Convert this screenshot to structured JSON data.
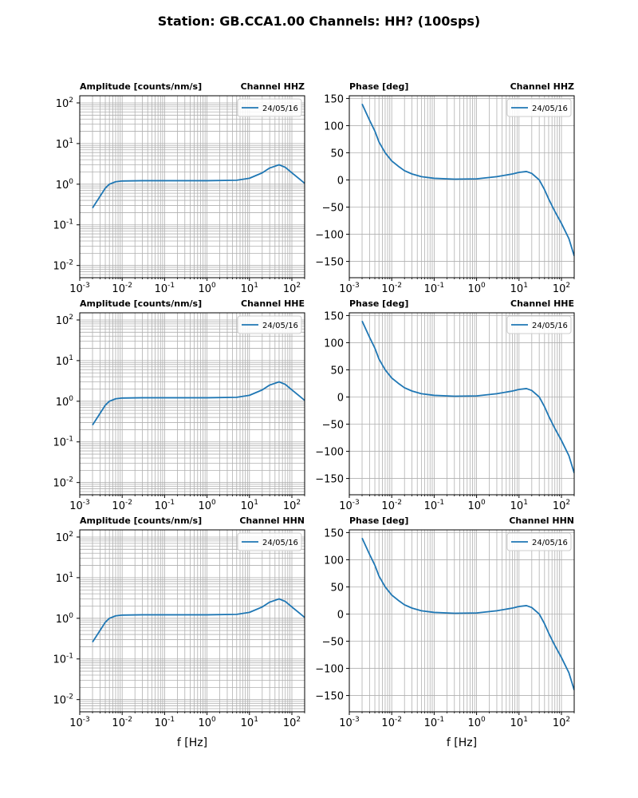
{
  "figure": {
    "title": "Station: GB.CCA1.00 Channels: HH? (100sps)"
  },
  "chart_data": [
    {
      "type": "line",
      "kind": "amplitude",
      "title_left": "Amplitude [counts/nm/s]",
      "title_right": "Channel HHZ",
      "xscale": "log",
      "yscale": "log",
      "xlim": [
        0.001,
        200
      ],
      "ylim": [
        0.005,
        150
      ],
      "xticks": [
        0.001,
        0.01,
        0.1,
        1,
        10,
        100
      ],
      "yticks": [
        0.01,
        0.1,
        1,
        10,
        100
      ],
      "xlabel": "",
      "grid": true,
      "legend_position": "top-right",
      "series": [
        {
          "name": "24/05/16",
          "color": "#1f77b4",
          "x": [
            0.002,
            0.003,
            0.004,
            0.005,
            0.007,
            0.01,
            0.03,
            0.1,
            1,
            5,
            10,
            20,
            30,
            50,
            70,
            100,
            150,
            200
          ],
          "y": [
            0.26,
            0.5,
            0.8,
            1.0,
            1.15,
            1.2,
            1.22,
            1.22,
            1.22,
            1.25,
            1.4,
            1.9,
            2.5,
            3.0,
            2.6,
            1.9,
            1.35,
            1.05
          ]
        }
      ]
    },
    {
      "type": "line",
      "kind": "phase",
      "title_left": "Phase [deg]",
      "title_right": "Channel HHZ",
      "xscale": "log",
      "yscale": "linear",
      "xlim": [
        0.001,
        200
      ],
      "ylim": [
        -180,
        155
      ],
      "xticks": [
        0.001,
        0.01,
        0.1,
        1,
        10,
        100
      ],
      "yticks": [
        -150,
        -100,
        -50,
        0,
        50,
        100,
        150
      ],
      "xlabel": "",
      "grid": true,
      "legend_position": "top-right",
      "series": [
        {
          "name": "24/05/16",
          "color": "#1f77b4",
          "x": [
            0.002,
            0.003,
            0.004,
            0.005,
            0.007,
            0.01,
            0.015,
            0.02,
            0.03,
            0.05,
            0.1,
            0.3,
            1,
            3,
            7,
            10,
            15,
            20,
            30,
            40,
            50,
            70,
            100,
            150,
            200
          ],
          "y": [
            140,
            110,
            90,
            70,
            50,
            35,
            24,
            17,
            11,
            6,
            3,
            1.5,
            2,
            6,
            11,
            14,
            15.5,
            12,
            0,
            -18,
            -35,
            -58,
            -80,
            -108,
            -140
          ]
        }
      ]
    },
    {
      "type": "line",
      "kind": "amplitude",
      "title_left": "Amplitude [counts/nm/s]",
      "title_right": "Channel HHE",
      "xscale": "log",
      "yscale": "log",
      "xlim": [
        0.001,
        200
      ],
      "ylim": [
        0.005,
        150
      ],
      "xticks": [
        0.001,
        0.01,
        0.1,
        1,
        10,
        100
      ],
      "yticks": [
        0.01,
        0.1,
        1,
        10,
        100
      ],
      "xlabel": "",
      "grid": true,
      "legend_position": "top-right",
      "series": [
        {
          "name": "24/05/16",
          "color": "#1f77b4",
          "x": [
            0.002,
            0.003,
            0.004,
            0.005,
            0.007,
            0.01,
            0.03,
            0.1,
            1,
            5,
            10,
            20,
            30,
            50,
            70,
            100,
            150,
            200
          ],
          "y": [
            0.26,
            0.5,
            0.8,
            1.0,
            1.15,
            1.2,
            1.22,
            1.22,
            1.22,
            1.25,
            1.4,
            1.9,
            2.5,
            3.0,
            2.6,
            1.9,
            1.35,
            1.05
          ]
        }
      ]
    },
    {
      "type": "line",
      "kind": "phase",
      "title_left": "Phase [deg]",
      "title_right": "Channel HHE",
      "xscale": "log",
      "yscale": "linear",
      "xlim": [
        0.001,
        200
      ],
      "ylim": [
        -180,
        155
      ],
      "xticks": [
        0.001,
        0.01,
        0.1,
        1,
        10,
        100
      ],
      "yticks": [
        -150,
        -100,
        -50,
        0,
        50,
        100,
        150
      ],
      "xlabel": "",
      "grid": true,
      "legend_position": "top-right",
      "series": [
        {
          "name": "24/05/16",
          "color": "#1f77b4",
          "x": [
            0.002,
            0.003,
            0.004,
            0.005,
            0.007,
            0.01,
            0.015,
            0.02,
            0.03,
            0.05,
            0.1,
            0.3,
            1,
            3,
            7,
            10,
            15,
            20,
            30,
            40,
            50,
            70,
            100,
            150,
            200
          ],
          "y": [
            140,
            110,
            90,
            70,
            50,
            35,
            24,
            17,
            11,
            6,
            3,
            1.5,
            2,
            6,
            11,
            14,
            15.5,
            12,
            0,
            -18,
            -35,
            -58,
            -80,
            -108,
            -140
          ]
        }
      ]
    },
    {
      "type": "line",
      "kind": "amplitude",
      "title_left": "Amplitude [counts/nm/s]",
      "title_right": "Channel HHN",
      "xscale": "log",
      "yscale": "log",
      "xlim": [
        0.001,
        200
      ],
      "ylim": [
        0.005,
        150
      ],
      "xticks": [
        0.001,
        0.01,
        0.1,
        1,
        10,
        100
      ],
      "yticks": [
        0.01,
        0.1,
        1,
        10,
        100
      ],
      "xlabel": "f [Hz]",
      "grid": true,
      "legend_position": "top-right",
      "series": [
        {
          "name": "24/05/16",
          "color": "#1f77b4",
          "x": [
            0.002,
            0.003,
            0.004,
            0.005,
            0.007,
            0.01,
            0.03,
            0.1,
            1,
            5,
            10,
            20,
            30,
            50,
            70,
            100,
            150,
            200
          ],
          "y": [
            0.26,
            0.5,
            0.8,
            1.0,
            1.15,
            1.2,
            1.22,
            1.22,
            1.22,
            1.25,
            1.4,
            1.9,
            2.5,
            3.0,
            2.6,
            1.9,
            1.35,
            1.05
          ]
        }
      ]
    },
    {
      "type": "line",
      "kind": "phase",
      "title_left": "Phase [deg]",
      "title_right": "Channel HHN",
      "xscale": "log",
      "yscale": "linear",
      "xlim": [
        0.001,
        200
      ],
      "ylim": [
        -180,
        155
      ],
      "xticks": [
        0.001,
        0.01,
        0.1,
        1,
        10,
        100
      ],
      "yticks": [
        -150,
        -100,
        -50,
        0,
        50,
        100,
        150
      ],
      "xlabel": "f [Hz]",
      "grid": true,
      "legend_position": "top-right",
      "series": [
        {
          "name": "24/05/16",
          "color": "#1f77b4",
          "x": [
            0.002,
            0.003,
            0.004,
            0.005,
            0.007,
            0.01,
            0.015,
            0.02,
            0.03,
            0.05,
            0.1,
            0.3,
            1,
            3,
            7,
            10,
            15,
            20,
            30,
            40,
            50,
            70,
            100,
            150,
            200
          ],
          "y": [
            140,
            110,
            90,
            70,
            50,
            35,
            24,
            17,
            11,
            6,
            3,
            1.5,
            2,
            6,
            11,
            14,
            15.5,
            12,
            0,
            -18,
            -35,
            -58,
            -80,
            -108,
            -140
          ]
        }
      ]
    }
  ]
}
